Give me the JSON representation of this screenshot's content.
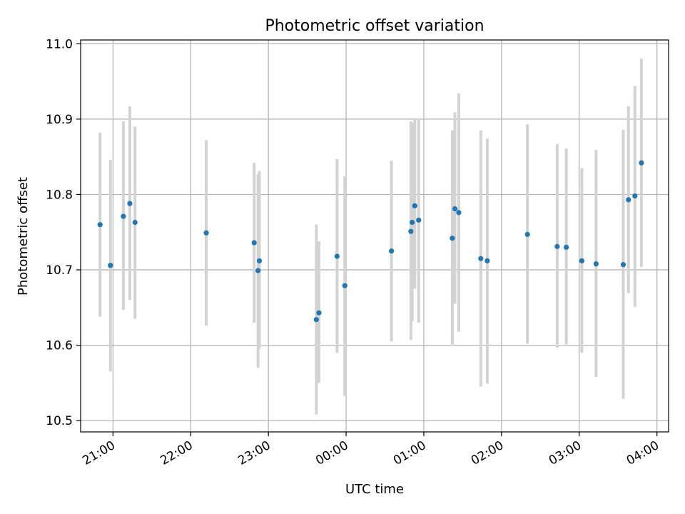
{
  "chart_data": {
    "type": "scatter",
    "title": "Photometric offset variation",
    "xlabel": "UTC time",
    "ylabel": "Photometric offset",
    "x_is_time": true,
    "x_ticks": [
      "21:00",
      "22:00",
      "23:00",
      "00:00",
      "01:00",
      "02:00",
      "03:00",
      "04:00"
    ],
    "y_ticks": [
      "10.5",
      "10.6",
      "10.7",
      "10.8",
      "10.9",
      "11.0"
    ],
    "ylim": [
      10.485,
      11.005
    ],
    "xlim": [
      "20:35",
      "04:09"
    ],
    "grid": true,
    "point_color": "#1f77b4",
    "errorbar_color": "#d3d3d3",
    "points": [
      {
        "t": "20:50",
        "y": 10.76,
        "lo": 10.638,
        "hi": 10.882
      },
      {
        "t": "20:58",
        "y": 10.706,
        "lo": 10.565,
        "hi": 10.846
      },
      {
        "t": "21:08",
        "y": 10.771,
        "lo": 10.647,
        "hi": 10.897
      },
      {
        "t": "21:13",
        "y": 10.788,
        "lo": 10.66,
        "hi": 10.917
      },
      {
        "t": "21:17",
        "y": 10.763,
        "lo": 10.635,
        "hi": 10.89
      },
      {
        "t": "22:12",
        "y": 10.749,
        "lo": 10.626,
        "hi": 10.872
      },
      {
        "t": "22:49",
        "y": 10.736,
        "lo": 10.63,
        "hi": 10.842
      },
      {
        "t": "22:52",
        "y": 10.699,
        "lo": 10.57,
        "hi": 10.827
      },
      {
        "t": "22:53",
        "y": 10.712,
        "lo": 10.595,
        "hi": 10.831
      },
      {
        "t": "23:37",
        "y": 10.634,
        "lo": 10.508,
        "hi": 10.76
      },
      {
        "t": "23:39",
        "y": 10.643,
        "lo": 10.55,
        "hi": 10.738
      },
      {
        "t": "23:53",
        "y": 10.718,
        "lo": 10.59,
        "hi": 10.847
      },
      {
        "t": "23:59",
        "y": 10.679,
        "lo": 10.533,
        "hi": 10.824
      },
      {
        "t": "00:35",
        "y": 10.725,
        "lo": 10.605,
        "hi": 10.845
      },
      {
        "t": "00:50",
        "y": 10.751,
        "lo": 10.607,
        "hi": 10.897
      },
      {
        "t": "00:51",
        "y": 10.763,
        "lo": 10.632,
        "hi": 10.895
      },
      {
        "t": "00:53",
        "y": 10.785,
        "lo": 10.675,
        "hi": 10.899
      },
      {
        "t": "00:56",
        "y": 10.766,
        "lo": 10.63,
        "hi": 10.901
      },
      {
        "t": "01:22",
        "y": 10.742,
        "lo": 10.6,
        "hi": 10.885
      },
      {
        "t": "01:24",
        "y": 10.781,
        "lo": 10.655,
        "hi": 10.909
      },
      {
        "t": "01:27",
        "y": 10.776,
        "lo": 10.618,
        "hi": 10.934
      },
      {
        "t": "01:44",
        "y": 10.715,
        "lo": 10.545,
        "hi": 10.885
      },
      {
        "t": "01:49",
        "y": 10.712,
        "lo": 10.549,
        "hi": 10.874
      },
      {
        "t": "02:20",
        "y": 10.747,
        "lo": 10.602,
        "hi": 10.893
      },
      {
        "t": "02:43",
        "y": 10.731,
        "lo": 10.597,
        "hi": 10.867
      },
      {
        "t": "02:50",
        "y": 10.73,
        "lo": 10.601,
        "hi": 10.861
      },
      {
        "t": "03:02",
        "y": 10.712,
        "lo": 10.59,
        "hi": 10.835
      },
      {
        "t": "03:13",
        "y": 10.708,
        "lo": 10.558,
        "hi": 10.859
      },
      {
        "t": "03:34",
        "y": 10.707,
        "lo": 10.529,
        "hi": 10.886
      },
      {
        "t": "03:38",
        "y": 10.793,
        "lo": 10.669,
        "hi": 10.917
      },
      {
        "t": "03:43",
        "y": 10.798,
        "lo": 10.651,
        "hi": 10.944
      },
      {
        "t": "03:48",
        "y": 10.842,
        "lo": 10.704,
        "hi": 10.98
      }
    ]
  }
}
